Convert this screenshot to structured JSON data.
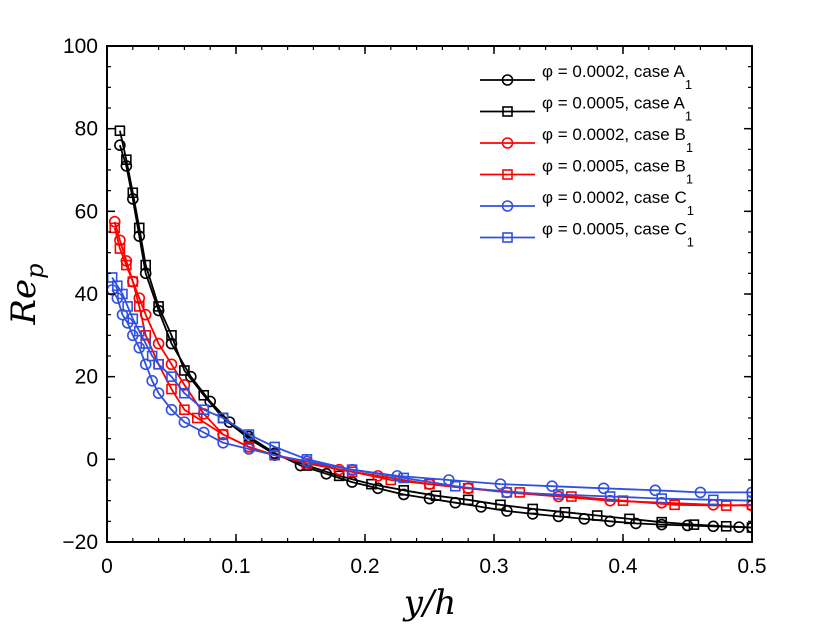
{
  "chart_data": {
    "type": "line",
    "title": "",
    "xlabel": "y/h",
    "ylabel": "Re_p",
    "xlabel_parts": {
      "main": "y/h"
    },
    "ylabel_parts": {
      "main": "Re",
      "sub": "p"
    },
    "xlim": [
      0,
      0.5
    ],
    "ylim": [
      -20,
      100
    ],
    "xticks": [
      0,
      0.1,
      0.2,
      0.3,
      0.4,
      0.5
    ],
    "xtick_labels": [
      "0",
      "0.1",
      "0.2",
      "0.3",
      "0.4",
      "0.5"
    ],
    "yticks": [
      -20,
      0,
      20,
      40,
      60,
      80,
      100
    ],
    "ytick_labels": [
      "−20",
      "0",
      "20",
      "40",
      "60",
      "80",
      "100"
    ],
    "grid": false,
    "legend_position": "top-right",
    "series": [
      {
        "name": "φ = 0.0002, case A1",
        "legend_main": "φ = 0.0002, case A",
        "legend_sub": "1",
        "color": "#000000",
        "marker": "circle",
        "x": [
          0.01,
          0.015,
          0.02,
          0.025,
          0.03,
          0.04,
          0.05,
          0.065,
          0.08,
          0.095,
          0.11,
          0.13,
          0.15,
          0.17,
          0.19,
          0.21,
          0.23,
          0.25,
          0.27,
          0.29,
          0.31,
          0.33,
          0.35,
          0.37,
          0.39,
          0.41,
          0.43,
          0.45,
          0.47,
          0.49,
          0.5
        ],
        "y": [
          76,
          71,
          63,
          54,
          45,
          36,
          28,
          20,
          14,
          9,
          5.5,
          1.5,
          -1.5,
          -3.5,
          -5.5,
          -7,
          -8.5,
          -9.5,
          -10.5,
          -11.5,
          -12.5,
          -13.2,
          -13.8,
          -14.4,
          -15,
          -15.5,
          -15.8,
          -16,
          -16.2,
          -16.4,
          -16.5
        ]
      },
      {
        "name": "φ = 0.0005, case A1",
        "legend_main": "φ = 0.0005, case A",
        "legend_sub": "1",
        "color": "#000000",
        "marker": "square",
        "x": [
          0.01,
          0.015,
          0.02,
          0.025,
          0.03,
          0.04,
          0.05,
          0.06,
          0.075,
          0.09,
          0.11,
          0.13,
          0.155,
          0.18,
          0.205,
          0.23,
          0.255,
          0.28,
          0.305,
          0.33,
          0.355,
          0.38,
          0.405,
          0.43,
          0.455,
          0.48,
          0.5
        ],
        "y": [
          79.5,
          72.5,
          64.5,
          56,
          47,
          37,
          30,
          21.5,
          15.5,
          10,
          5,
          1.2,
          -1.5,
          -4,
          -6,
          -7.5,
          -8.8,
          -9.8,
          -11,
          -12,
          -12.8,
          -13.6,
          -14.4,
          -15.2,
          -15.8,
          -16.2,
          -16.5
        ]
      },
      {
        "name": "φ = 0.0002, case B1",
        "legend_main": "φ = 0.0002, case B",
        "legend_sub": "1",
        "color": "#ff0000",
        "marker": "circle",
        "x": [
          0.006,
          0.01,
          0.015,
          0.02,
          0.025,
          0.03,
          0.04,
          0.05,
          0.06,
          0.075,
          0.09,
          0.11,
          0.13,
          0.155,
          0.18,
          0.21,
          0.25,
          0.28,
          0.31,
          0.35,
          0.39,
          0.43,
          0.47,
          0.5
        ],
        "y": [
          57.5,
          53,
          48,
          43,
          39,
          35,
          28,
          23,
          18,
          11,
          6,
          3,
          1,
          -0.5,
          -2.5,
          -4,
          -6,
          -7,
          -8,
          -9,
          -10,
          -10.5,
          -11,
          -11.2
        ]
      },
      {
        "name": "φ = 0.0005, case B1",
        "legend_main": "φ = 0.0005, case B",
        "legend_sub": "1",
        "color": "#ff0000",
        "marker": "square",
        "x": [
          0.006,
          0.01,
          0.015,
          0.02,
          0.025,
          0.03,
          0.04,
          0.05,
          0.06,
          0.07,
          0.09,
          0.11,
          0.13,
          0.155,
          0.19,
          0.22,
          0.25,
          0.28,
          0.32,
          0.36,
          0.4,
          0.44,
          0.48,
          0.5
        ],
        "y": [
          56,
          51,
          47,
          43,
          37,
          30,
          23,
          17,
          12,
          10,
          6,
          3,
          1,
          -1,
          -3,
          -5,
          -6,
          -7,
          -8,
          -9,
          -10,
          -11,
          -11.2,
          -11
        ]
      },
      {
        "name": "φ = 0.0002, case C1",
        "legend_main": "φ = 0.0002, case C",
        "legend_sub": "1",
        "color": "#3050e0",
        "marker": "circle",
        "x": [
          0.004,
          0.008,
          0.012,
          0.016,
          0.02,
          0.025,
          0.03,
          0.035,
          0.04,
          0.05,
          0.06,
          0.075,
          0.09,
          0.11,
          0.13,
          0.155,
          0.19,
          0.225,
          0.265,
          0.305,
          0.345,
          0.385,
          0.425,
          0.46,
          0.5
        ],
        "y": [
          41,
          39,
          35,
          33,
          30,
          27,
          23,
          19,
          16,
          12,
          9,
          6.5,
          4,
          2.5,
          1,
          -0.5,
          -2.5,
          -4,
          -5,
          -6,
          -6.5,
          -7,
          -7.5,
          -8,
          -8
        ]
      },
      {
        "name": "φ = 0.0005, case C1",
        "legend_main": "φ = 0.0005, case C",
        "legend_sub": "1",
        "color": "#3050e0",
        "marker": "square",
        "x": [
          0.004,
          0.008,
          0.012,
          0.016,
          0.02,
          0.025,
          0.03,
          0.035,
          0.04,
          0.05,
          0.06,
          0.075,
          0.09,
          0.11,
          0.13,
          0.155,
          0.19,
          0.23,
          0.27,
          0.31,
          0.35,
          0.39,
          0.43,
          0.47,
          0.5
        ],
        "y": [
          44,
          42,
          40,
          37,
          34,
          31,
          28,
          25,
          23,
          20,
          16,
          12,
          10,
          6,
          3,
          0,
          -2.5,
          -4.5,
          -6.5,
          -8,
          -8.5,
          -9,
          -9.5,
          -9.8,
          -10
        ]
      }
    ]
  }
}
